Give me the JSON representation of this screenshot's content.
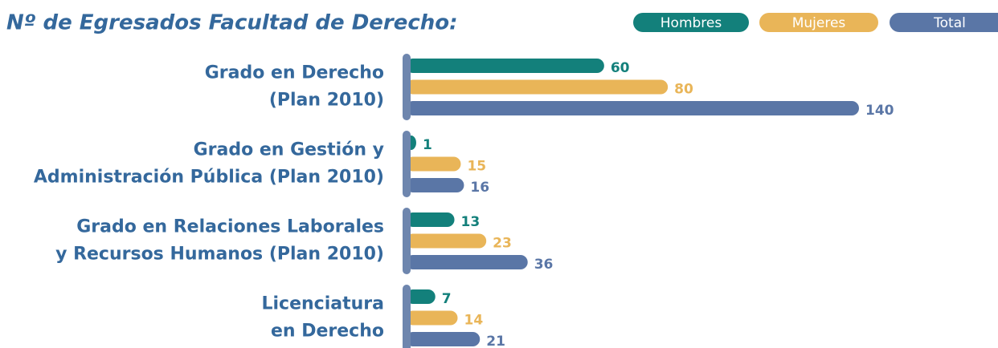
{
  "chart_data": {
    "type": "bar",
    "orientation": "horizontal",
    "title": "Nº de Egresados Facultad de Derecho:",
    "categories": [
      [
        "Grado en Derecho",
        "(Plan 2010)"
      ],
      [
        "Grado en Gestión y",
        "Administración Pública (Plan 2010)"
      ],
      [
        "Grado en Relaciones Laborales",
        "y Recursos Humanos (Plan 2010)"
      ],
      [
        "Licenciatura",
        "en Derecho"
      ]
    ],
    "series": [
      {
        "name": "Hombres",
        "color": "#13807b",
        "values": [
          60,
          1,
          13,
          7
        ]
      },
      {
        "name": "Mujeres",
        "color": "#e9b558",
        "values": [
          80,
          15,
          23,
          14
        ]
      },
      {
        "name": "Total",
        "color": "#5a76a6",
        "values": [
          140,
          16,
          36,
          21
        ]
      }
    ],
    "legend": "top-right"
  }
}
